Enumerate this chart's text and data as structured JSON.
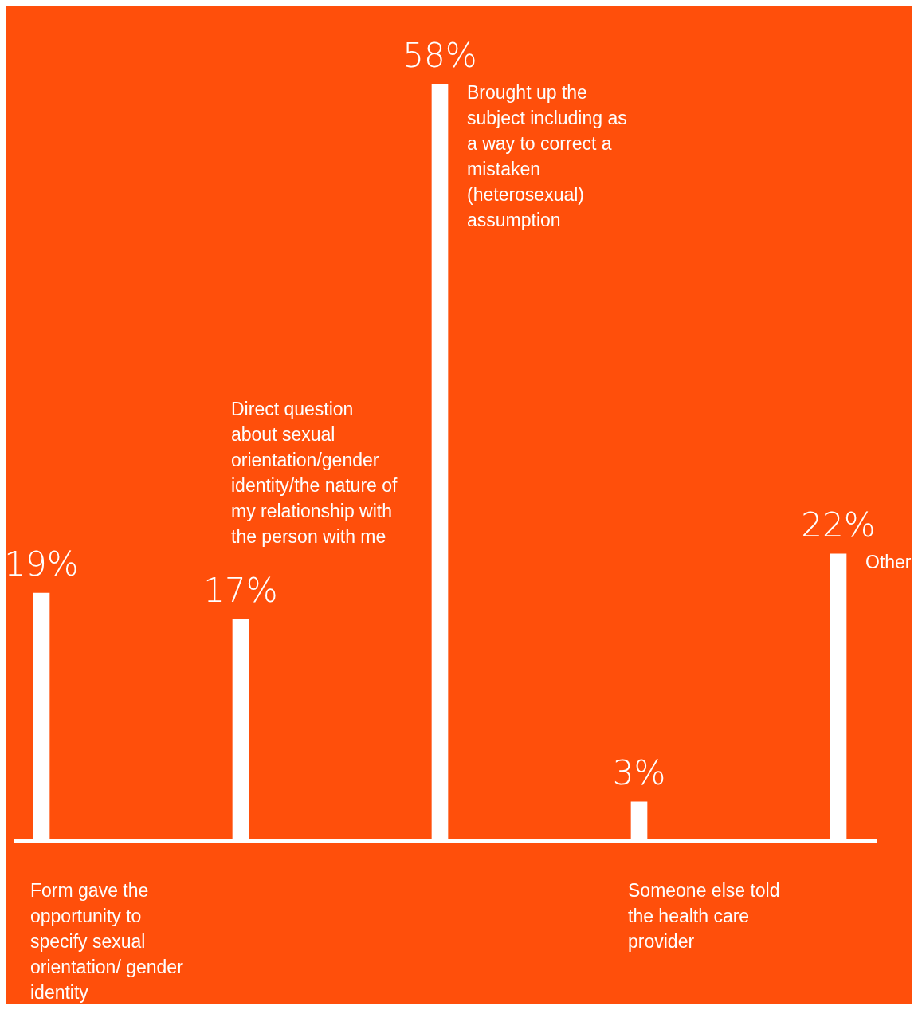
{
  "chart_data": {
    "type": "bar",
    "categories": [
      "Form gave the opportunity to specify sexual orientation/ gender identity",
      "Direct question about sexual orientation/gender identity/the nature of my relationship with the person with me",
      "Brought up the subject including as a way to correct a mistaken (heterosexual) assumption",
      "Someone else told the health care provider",
      "Other"
    ],
    "values": [
      19,
      17,
      58,
      3,
      22
    ],
    "color": "#ffffff",
    "value_labels": [
      "19%",
      "17%",
      "58%",
      "3%",
      "22%"
    ],
    "legend": false,
    "tick_labels": false
  }
}
